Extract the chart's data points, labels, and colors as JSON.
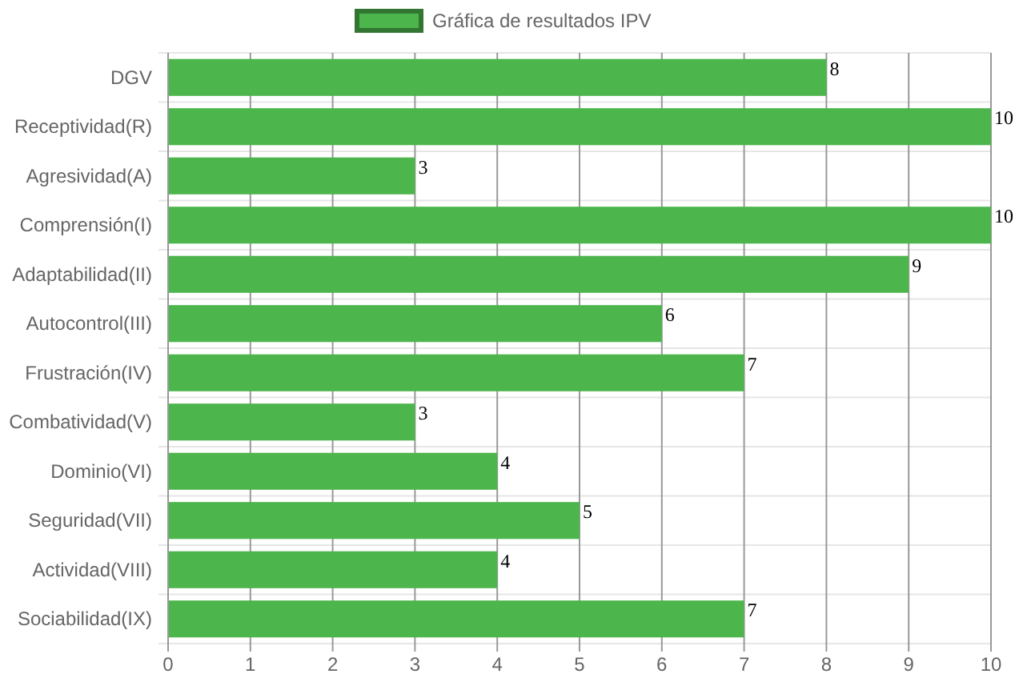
{
  "chart_data": {
    "type": "bar",
    "orientation": "horizontal",
    "categories": [
      "DGV",
      "Receptividad(R)",
      "Agresividad(A)",
      "Comprensión(I)",
      "Adaptabilidad(II)",
      "Autocontrol(III)",
      "Frustración(IV)",
      "Combatividad(V)",
      "Dominio(VI)",
      "Seguridad(VII)",
      "Actividad(VIII)",
      "Sociabilidad(IX)"
    ],
    "series": [
      {
        "name": "Gráfica de resultados IPV",
        "color": "#4cb54c",
        "values": [
          8,
          10,
          3,
          10,
          9,
          6,
          7,
          3,
          4,
          5,
          4,
          7
        ]
      }
    ],
    "xlim": [
      0,
      10
    ],
    "xticks": [
      0,
      1,
      2,
      3,
      4,
      5,
      6,
      7,
      8,
      9,
      10
    ],
    "grid": true,
    "legend": "top",
    "data_labels": true
  }
}
